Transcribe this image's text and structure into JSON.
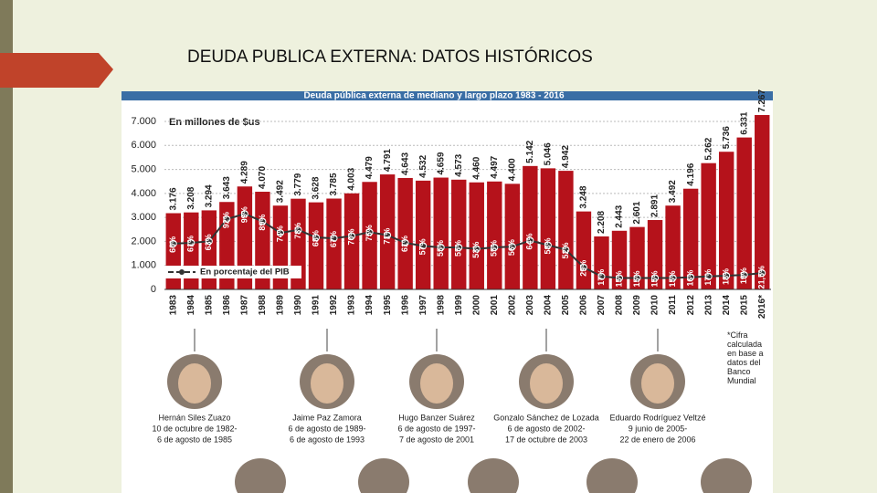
{
  "slide": {
    "title": "DEUDA PUBLICA EXTERNA: DATOS HISTÓRICOS"
  },
  "chart_data": {
    "type": "bar",
    "title": "Deuda pública externa de mediano y largo plazo 1983 - 2016",
    "y_label": "En millones de $us",
    "categories": [
      "1983",
      "1984",
      "1985",
      "1986",
      "1987",
      "1988",
      "1989",
      "1990",
      "1991",
      "1992",
      "1993",
      "1994",
      "1995",
      "1996",
      "1997",
      "1998",
      "1999",
      "2000",
      "2001",
      "2002",
      "2003",
      "2004",
      "2005",
      "2006",
      "2007",
      "2008",
      "2009",
      "2010",
      "2011",
      "2012",
      "2013",
      "2014",
      "2015",
      "2016*"
    ],
    "series": [
      {
        "color": "#b5121b",
        "values": [
          3176,
          3208,
          3294,
          3643,
          4289,
          4070,
          3492,
          3779,
          3628,
          3785,
          4003,
          4479,
          4791,
          4643,
          4532,
          4659,
          4573,
          4460,
          4497,
          4400,
          5142,
          5046,
          4942,
          3248,
          2208,
          2443,
          2601,
          2891,
          3492,
          4196,
          5262,
          5736,
          6331,
          7267
        ],
        "value_labels": [
          "3.176",
          "3.208",
          "3.294",
          "3.643",
          "4.289",
          "4.070",
          "3.492",
          "3.779",
          "3.628",
          "3.785",
          "4.003",
          "4.479",
          "4.791",
          "4.643",
          "4.532",
          "4.659",
          "4.573",
          "4.460",
          "4.497",
          "4.400",
          "5.142",
          "5.046",
          "4.942",
          "3.248",
          "2.208",
          "2.443",
          "2.601",
          "2.891",
          "3.492",
          "4.196",
          "5.262",
          "5.736",
          "6.331",
          "7.267"
        ]
      },
      {
        "name": "En porcentaje del PIB",
        "type": "line",
        "axis": "y2",
        "color": "#333333",
        "values": [
          60,
          61,
          63,
          92,
          99,
          89,
          74,
          78,
          68,
          67,
          70,
          75,
          71,
          61,
          57,
          55,
          55,
          53,
          55,
          56,
          64,
          58,
          52,
          29,
          17,
          15,
          15,
          15,
          15,
          16,
          17,
          18,
          19,
          21.5
        ],
        "value_labels": [
          "60%",
          "61%",
          "63%",
          "92%",
          "99%",
          "89%",
          "74%",
          "78%",
          "68%",
          "67%",
          "70%",
          "75%",
          "71%",
          "61%",
          "57%",
          "55%",
          "55%",
          "53%",
          "55%",
          "56%",
          "64%",
          "58%",
          "52%",
          "29%",
          "17%",
          "15%",
          "15%",
          "15%",
          "15%",
          "16%",
          "17%",
          "18%",
          "19%",
          "21,5%"
        ]
      }
    ],
    "ylim": [
      0,
      7000
    ],
    "yticks": [
      0,
      {
        "value": 1000,
        "label": "1.000"
      },
      {
        "value": 2000,
        "label": "2.000"
      },
      {
        "value": 3000,
        "label": "3.000"
      },
      {
        "value": 4000,
        "label": "4.000"
      },
      {
        "value": 5000,
        "label": "5.000"
      },
      {
        "value": 6000,
        "label": "6.000"
      },
      {
        "value": 7000,
        "label": "7.000"
      }
    ],
    "y2lim": [
      0,
      220
    ],
    "grid": true,
    "note": "*Cifra calculada en base a datos del Banco Mundial"
  },
  "presidents": [
    {
      "name": "Hernán Siles Zuazo",
      "from": "10 de octubre de 1982-",
      "to": "6 de agosto de 1985"
    },
    {
      "name": "Jaime Paz Zamora",
      "from": "6 de agosto de 1989-",
      "to": "6 de agosto de 1993"
    },
    {
      "name": "Hugo Banzer Suárez",
      "from": "6 de agosto de 1997-",
      "to": "7 de agosto de 2001"
    },
    {
      "name": "Gonzalo Sánchez de Lozada",
      "from": "6 de agosto de 2002-",
      "to": "17 de octubre de 2003"
    },
    {
      "name": "Eduardo Rodríguez Veltzé",
      "from": "9 junio de 2005-",
      "to": "22 de enero de 2006"
    }
  ]
}
